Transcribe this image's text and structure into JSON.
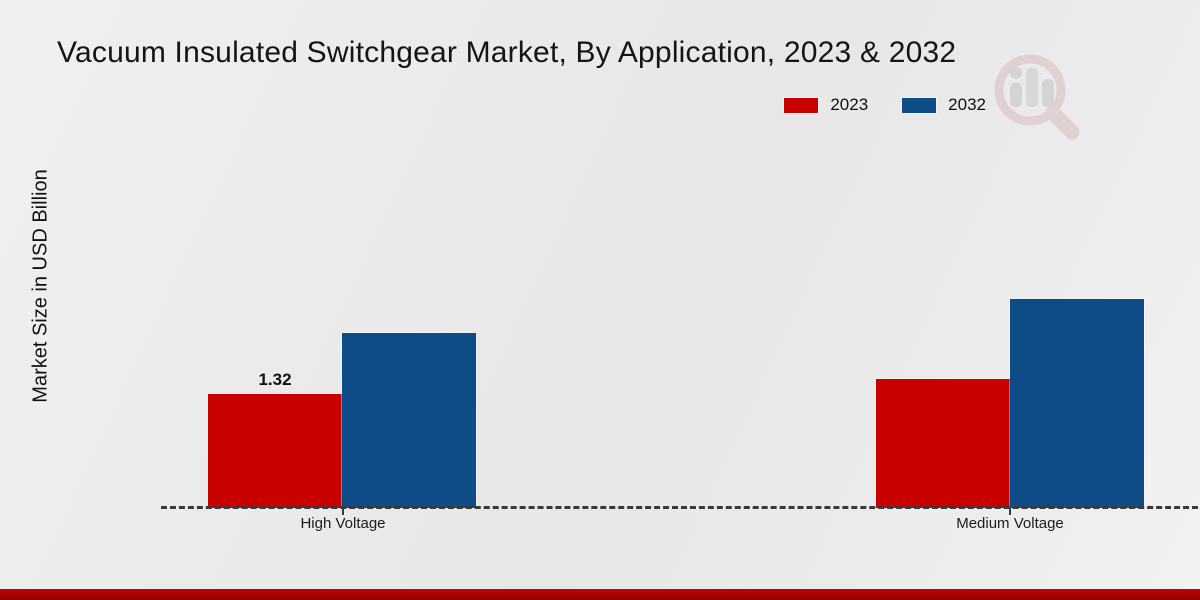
{
  "page": {
    "watermark_icon": "magnifier-bar-chart-logo"
  },
  "colors": {
    "background": "#e9e9e9",
    "footer_band": "#a80000",
    "axis": "#3a3a3a",
    "text": "#1a1a1a",
    "series_2023": "#c80000",
    "series_2032": "#0d4c86",
    "watermark_ring": "#dabcbe",
    "watermark_bars": "#c2c2c2"
  },
  "chart_data": {
    "type": "bar",
    "title": "Vacuum Insulated Switchgear Market, By Application, 2023 & 2032",
    "ylabel": "Market Size in USD Billion",
    "xlabel": "",
    "categories": [
      "High Voltage",
      "Medium Voltage"
    ],
    "series": [
      {
        "name": "2023",
        "color": "#c80000",
        "values": [
          1.32,
          1.49
        ]
      },
      {
        "name": "2032",
        "color": "#0d4c86",
        "values": [
          2.03,
          2.42
        ]
      }
    ],
    "data_labels": [
      {
        "series": 0,
        "category": 0,
        "text": "1.32"
      }
    ],
    "ylim": [
      0,
      2.6
    ],
    "grid": false,
    "legend_position": "top-right",
    "axis_line_style": "dashed"
  }
}
